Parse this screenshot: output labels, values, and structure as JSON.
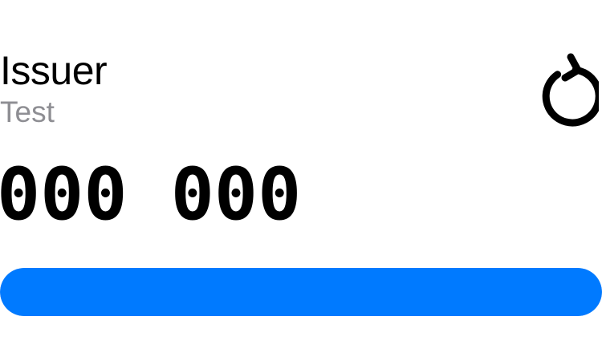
{
  "token": {
    "issuer": "Issuer",
    "account": "Test",
    "code": "000 000"
  },
  "icons": {
    "refresh": "refresh-icon"
  },
  "progress": {
    "fraction": 1.0
  },
  "colors": {
    "accent": "#007aff",
    "secondary_text": "#8e8e93",
    "primary_text": "#000000",
    "background": "#ffffff"
  }
}
